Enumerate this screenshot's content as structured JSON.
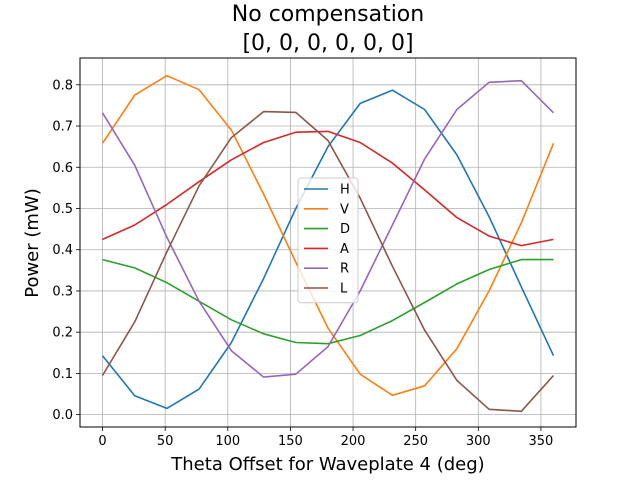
{
  "chart_data": {
    "type": "line",
    "title": "No compensation",
    "subtitle": "[0, 0, 0, 0, 0, 0]",
    "xlabel": "Theta Offset for Waveplate 4 (deg)",
    "ylabel": "Power (mW)",
    "xlim": [
      -18,
      378
    ],
    "ylim": [
      -0.03,
      0.865
    ],
    "xticks": [
      0,
      50,
      100,
      150,
      200,
      250,
      300,
      350
    ],
    "yticks": [
      0.0,
      0.1,
      0.2,
      0.3,
      0.4,
      0.5,
      0.6,
      0.7,
      0.8
    ],
    "xtick_labels": [
      "0",
      "50",
      "100",
      "150",
      "200",
      "250",
      "300",
      "350"
    ],
    "ytick_labels": [
      "0.0",
      "0.1",
      "0.2",
      "0.3",
      "0.4",
      "0.5",
      "0.6",
      "0.7",
      "0.8"
    ],
    "grid": true,
    "legend_position": "center",
    "x": [
      0,
      25.7,
      51.4,
      77.1,
      102.9,
      128.6,
      154.3,
      180,
      205.7,
      231.4,
      257.1,
      282.9,
      308.6,
      334.3,
      360
    ],
    "series": [
      {
        "name": "H",
        "color": "#1f77b4",
        "values": [
          0.143,
          0.046,
          0.015,
          0.062,
          0.175,
          0.33,
          0.5,
          0.65,
          0.755,
          0.787,
          0.74,
          0.63,
          0.48,
          0.31,
          0.143
        ]
      },
      {
        "name": "V",
        "color": "#ff7f0e",
        "values": [
          0.658,
          0.775,
          0.822,
          0.788,
          0.69,
          0.535,
          0.37,
          0.21,
          0.098,
          0.047,
          0.07,
          0.16,
          0.3,
          0.465,
          0.658
        ]
      },
      {
        "name": "D",
        "color": "#2ca02c",
        "values": [
          0.376,
          0.356,
          0.32,
          0.275,
          0.23,
          0.196,
          0.175,
          0.172,
          0.192,
          0.228,
          0.272,
          0.317,
          0.352,
          0.376,
          0.376
        ]
      },
      {
        "name": "A",
        "color": "#d62728",
        "values": [
          0.425,
          0.46,
          0.51,
          0.565,
          0.618,
          0.66,
          0.685,
          0.687,
          0.66,
          0.61,
          0.545,
          0.478,
          0.433,
          0.41,
          0.425
        ]
      },
      {
        "name": "R",
        "color": "#9467bd",
        "values": [
          0.732,
          0.605,
          0.43,
          0.275,
          0.155,
          0.091,
          0.098,
          0.165,
          0.3,
          0.46,
          0.62,
          0.74,
          0.806,
          0.81,
          0.732
        ]
      },
      {
        "name": "L",
        "color": "#8c564b",
        "values": [
          0.095,
          0.225,
          0.395,
          0.555,
          0.672,
          0.735,
          0.733,
          0.665,
          0.525,
          0.36,
          0.205,
          0.083,
          0.013,
          0.008,
          0.095
        ]
      }
    ]
  }
}
